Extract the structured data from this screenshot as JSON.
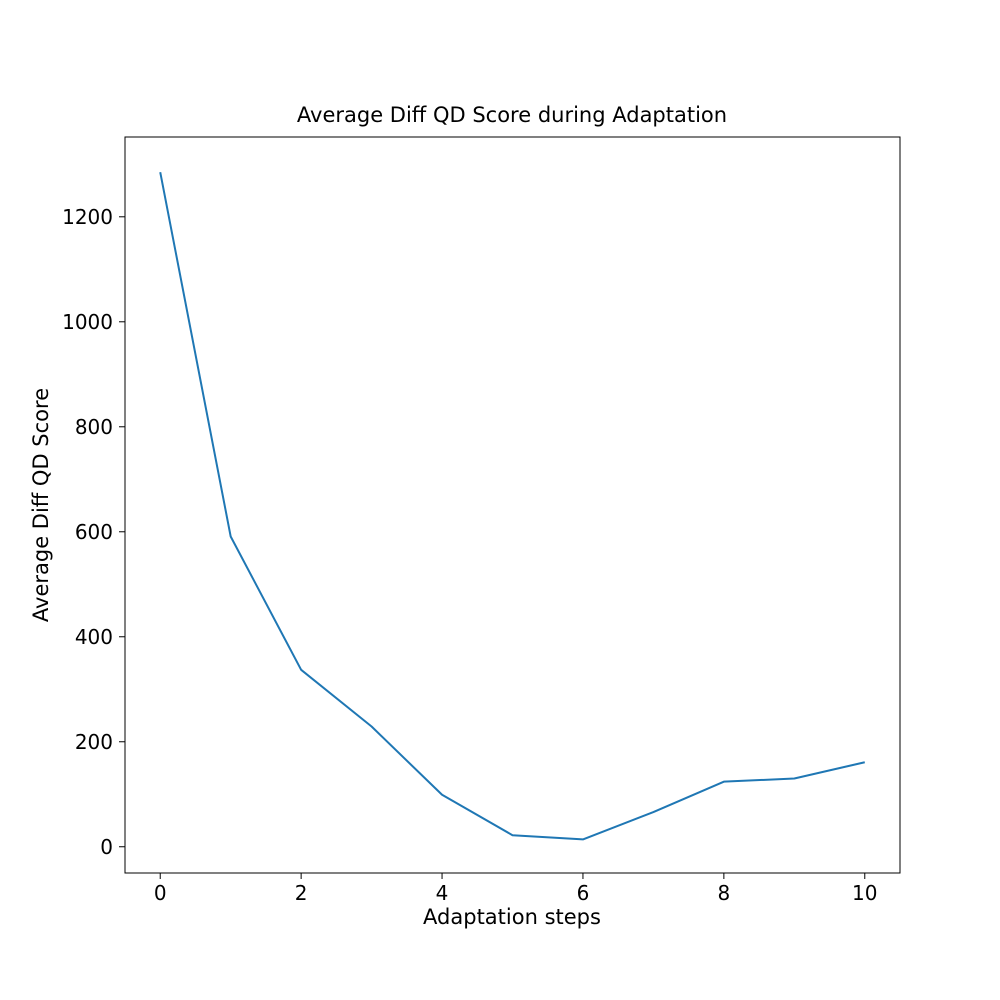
{
  "chart_data": {
    "type": "line",
    "title": "Average Diff QD Score during Adaptation",
    "xlabel": "Adaptation steps",
    "ylabel": "Average Diff QD Score",
    "xlim": [
      -0.5,
      10.5
    ],
    "ylim": [
      -50,
      1352
    ],
    "xticks": [
      0,
      2,
      4,
      6,
      8,
      10
    ],
    "yticks": [
      0,
      200,
      400,
      600,
      800,
      1000,
      1200
    ],
    "grid": false,
    "series": [
      {
        "color": "#1f77b4",
        "x": [
          0,
          1,
          2,
          3,
          4,
          5,
          6,
          7,
          8,
          9,
          10
        ],
        "y": [
          1285,
          591,
          337,
          229,
          99,
          22,
          14,
          66,
          124,
          130,
          161
        ]
      }
    ]
  }
}
